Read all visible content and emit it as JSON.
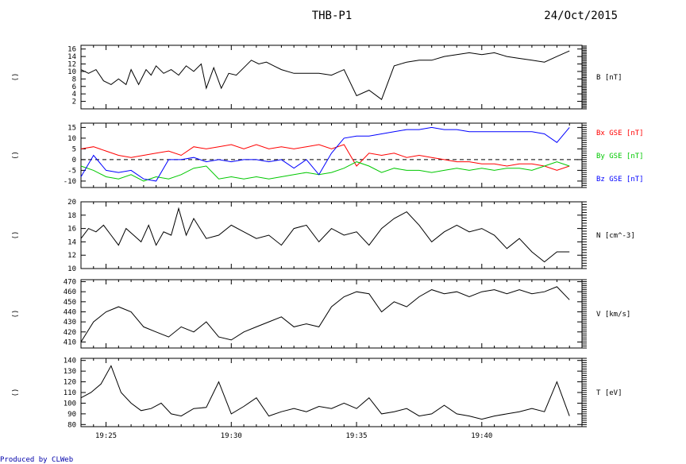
{
  "header": {
    "spacecraft": "THB-P1",
    "date": "24/Oct/2015"
  },
  "footer": {
    "produced_by": "Produced by CLWeb"
  },
  "panel_side_label": "()",
  "x_axis": {
    "ticks": [
      "19:25",
      "19:30",
      "19:35",
      "19:40"
    ]
  },
  "chart_data": [
    {
      "type": "line",
      "ylabel": "B [nT]",
      "ylim": [
        0,
        17
      ],
      "yticks": [
        "2",
        "4",
        "6",
        "8",
        "10",
        "12",
        "14",
        "16"
      ],
      "ytick_values": [
        2,
        4,
        6,
        8,
        10,
        12,
        14,
        16
      ],
      "series": [
        {
          "color": "#000000",
          "x": [
            0,
            0.3,
            0.6,
            0.9,
            1.2,
            1.5,
            1.8,
            2.0,
            2.3,
            2.6,
            2.8,
            3.0,
            3.3,
            3.6,
            3.9,
            4.2,
            4.5,
            4.8,
            5.0,
            5.3,
            5.6,
            5.9,
            6.2,
            6.5,
            6.8,
            7.1,
            7.4,
            7.7,
            8.0,
            8.5,
            9.0,
            9.5,
            10.0,
            10.5,
            11.0,
            11.5,
            12.0,
            12.5,
            13.0,
            13.5,
            14.0,
            14.5,
            15.0,
            15.5,
            16.0,
            16.5,
            17.0,
            17.5,
            18.0,
            18.5,
            19.0,
            19.5
          ],
          "values": [
            10.5,
            9.5,
            10.5,
            7.5,
            6.5,
            8.0,
            6.5,
            10.5,
            6.5,
            10.5,
            9.0,
            11.5,
            9.5,
            10.5,
            9.0,
            11.5,
            10.0,
            12.0,
            5.5,
            11.0,
            5.5,
            9.5,
            9.0,
            11.0,
            13.0,
            12.0,
            12.5,
            11.5,
            10.5,
            9.5,
            9.5,
            9.5,
            9.0,
            10.5,
            3.5,
            5.0,
            2.5,
            11.5,
            12.5,
            13.0,
            13.0,
            14.0,
            14.5,
            15.0,
            14.5,
            15.0,
            14.0,
            13.5,
            13.0,
            12.5,
            14.0,
            15.5
          ]
        }
      ]
    },
    {
      "type": "line",
      "ylabel": "",
      "legend": [
        "Bx GSE [nT]",
        "By GSE [nT]",
        "Bz GSE [nT]"
      ],
      "ylim": [
        -13,
        17
      ],
      "yticks": [
        "-10",
        "-5",
        "0",
        "5",
        "10",
        "15"
      ],
      "ytick_values": [
        -10,
        -5,
        0,
        5,
        10,
        15
      ],
      "zero_line": true,
      "series": [
        {
          "name": "Bx GSE [nT]",
          "color": "#ff0000",
          "x": [
            0,
            0.5,
            1.0,
            1.5,
            2.0,
            2.5,
            3.0,
            3.5,
            4.0,
            4.5,
            5.0,
            5.5,
            6.0,
            6.5,
            7.0,
            7.5,
            8.0,
            8.5,
            9.0,
            9.5,
            10.0,
            10.5,
            11.0,
            11.5,
            12.0,
            12.5,
            13.0,
            13.5,
            14.0,
            14.5,
            15.0,
            15.5,
            16.0,
            16.5,
            17.0,
            17.5,
            18.0,
            18.5,
            19.0,
            19.5
          ],
          "values": [
            5,
            6,
            4,
            2,
            1,
            2,
            3,
            4,
            2,
            6,
            5,
            6,
            7,
            5,
            7,
            5,
            6,
            5,
            6,
            7,
            5,
            7,
            -3,
            3,
            2,
            3,
            1,
            2,
            1,
            0,
            -1,
            -1,
            -2,
            -2,
            -3,
            -2,
            -2,
            -3,
            -5,
            -3
          ]
        },
        {
          "name": "By GSE [nT]",
          "color": "#00c800",
          "x": [
            0,
            0.5,
            1.0,
            1.5,
            2.0,
            2.5,
            3.0,
            3.5,
            4.0,
            4.5,
            5.0,
            5.5,
            6.0,
            6.5,
            7.0,
            7.5,
            8.0,
            8.5,
            9.0,
            9.5,
            10.0,
            10.5,
            11.0,
            11.5,
            12.0,
            12.5,
            13.0,
            13.5,
            14.0,
            14.5,
            15.0,
            15.5,
            16.0,
            16.5,
            17.0,
            17.5,
            18.0,
            18.5,
            19.0,
            19.5
          ],
          "values": [
            -3,
            -5,
            -8,
            -9,
            -7,
            -10,
            -8,
            -9,
            -7,
            -4,
            -3,
            -9,
            -8,
            -9,
            -8,
            -9,
            -8,
            -7,
            -6,
            -7,
            -6,
            -4,
            -1,
            -3,
            -6,
            -4,
            -5,
            -5,
            -6,
            -5,
            -4,
            -5,
            -4,
            -5,
            -4,
            -4,
            -5,
            -3,
            -1,
            -3
          ]
        },
        {
          "name": "Bz GSE [nT]",
          "color": "#0000ff",
          "x": [
            0,
            0.5,
            1.0,
            1.5,
            2.0,
            2.5,
            3.0,
            3.5,
            4.0,
            4.5,
            5.0,
            5.5,
            6.0,
            6.5,
            7.0,
            7.5,
            8.0,
            8.5,
            9.0,
            9.5,
            10.0,
            10.5,
            11.0,
            11.5,
            12.0,
            12.5,
            13.0,
            13.5,
            14.0,
            14.5,
            15.0,
            15.5,
            16.0,
            16.5,
            17.0,
            17.5,
            18.0,
            18.5,
            19.0,
            19.5
          ],
          "values": [
            -8,
            2,
            -5,
            -6,
            -5,
            -9,
            -10,
            0,
            0,
            1,
            -1,
            0,
            -1,
            0,
            0,
            -1,
            0,
            -4,
            0,
            -7,
            3,
            10,
            11,
            11,
            12,
            13,
            14,
            14,
            15,
            14,
            14,
            13,
            13,
            13,
            13,
            13,
            13,
            12,
            8,
            15
          ]
        }
      ]
    },
    {
      "type": "line",
      "ylabel": "N [cm^-3]",
      "ylim": [
        10,
        20
      ],
      "yticks": [
        "10",
        "12",
        "14",
        "16",
        "18",
        "20"
      ],
      "ytick_values": [
        10,
        12,
        14,
        16,
        18,
        20
      ],
      "series": [
        {
          "color": "#000000",
          "x": [
            0,
            0.3,
            0.6,
            0.9,
            1.2,
            1.5,
            1.8,
            2.1,
            2.4,
            2.7,
            3.0,
            3.3,
            3.6,
            3.9,
            4.2,
            4.5,
            5.0,
            5.5,
            6.0,
            6.5,
            7.0,
            7.5,
            8.0,
            8.5,
            9.0,
            9.5,
            10.0,
            10.5,
            11.0,
            11.5,
            12.0,
            12.5,
            13.0,
            13.5,
            14.0,
            14.5,
            15.0,
            15.5,
            16.0,
            16.5,
            17.0,
            17.5,
            18.0,
            18.5,
            19.0,
            19.5
          ],
          "values": [
            14.5,
            16.0,
            15.5,
            16.5,
            15.0,
            13.5,
            16.0,
            15.0,
            14.0,
            16.5,
            13.5,
            15.5,
            15.0,
            19.0,
            15.0,
            17.5,
            14.5,
            15.0,
            16.5,
            15.5,
            14.5,
            15.0,
            13.5,
            16.0,
            16.5,
            14.0,
            16.0,
            15.0,
            15.5,
            13.5,
            16.0,
            17.5,
            18.5,
            16.5,
            14.0,
            15.5,
            16.5,
            15.5,
            16.0,
            15.0,
            13.0,
            14.5,
            12.5,
            11.0,
            12.5,
            12.5
          ]
        }
      ]
    },
    {
      "type": "line",
      "ylabel": "V [km/s]",
      "ylim": [
        404,
        472
      ],
      "yticks": [
        "410",
        "420",
        "430",
        "440",
        "450",
        "460",
        "470"
      ],
      "ytick_values": [
        410,
        420,
        430,
        440,
        450,
        460,
        470
      ],
      "series": [
        {
          "color": "#000000",
          "x": [
            0,
            0.5,
            1.0,
            1.5,
            2.0,
            2.5,
            3.0,
            3.5,
            4.0,
            4.5,
            5.0,
            5.5,
            6.0,
            6.5,
            7.0,
            7.5,
            8.0,
            8.5,
            9.0,
            9.5,
            10.0,
            10.5,
            11.0,
            11.5,
            12.0,
            12.5,
            13.0,
            13.5,
            14.0,
            14.5,
            15.0,
            15.5,
            16.0,
            16.5,
            17.0,
            17.5,
            18.0,
            18.5,
            19.0,
            19.5
          ],
          "values": [
            410,
            430,
            440,
            445,
            440,
            425,
            420,
            415,
            425,
            420,
            430,
            415,
            412,
            420,
            425,
            430,
            435,
            425,
            428,
            425,
            445,
            455,
            460,
            458,
            440,
            450,
            445,
            455,
            462,
            458,
            460,
            455,
            460,
            462,
            458,
            462,
            458,
            460,
            465,
            452
          ]
        }
      ]
    },
    {
      "type": "line",
      "ylabel": "T [eV]",
      "ylim": [
        78,
        142
      ],
      "yticks": [
        "80",
        "90",
        "100",
        "110",
        "120",
        "130",
        "140"
      ],
      "ytick_values": [
        80,
        90,
        100,
        110,
        120,
        130,
        140
      ],
      "series": [
        {
          "color": "#000000",
          "x": [
            0,
            0.4,
            0.8,
            1.2,
            1.6,
            2.0,
            2.4,
            2.8,
            3.2,
            3.6,
            4.0,
            4.5,
            5.0,
            5.5,
            6.0,
            6.5,
            7.0,
            7.5,
            8.0,
            8.5,
            9.0,
            9.5,
            10.0,
            10.5,
            11.0,
            11.5,
            12.0,
            12.5,
            13.0,
            13.5,
            14.0,
            14.5,
            15.0,
            15.5,
            16.0,
            16.5,
            17.0,
            17.5,
            18.0,
            18.5,
            19.0,
            19.5
          ],
          "values": [
            105,
            110,
            118,
            135,
            110,
            100,
            93,
            95,
            100,
            90,
            88,
            95,
            96,
            120,
            90,
            97,
            105,
            88,
            92,
            95,
            92,
            97,
            95,
            100,
            95,
            105,
            90,
            92,
            95,
            88,
            90,
            98,
            90,
            88,
            85,
            88,
            90,
            92,
            95,
            92,
            120,
            88
          ]
        }
      ]
    }
  ]
}
